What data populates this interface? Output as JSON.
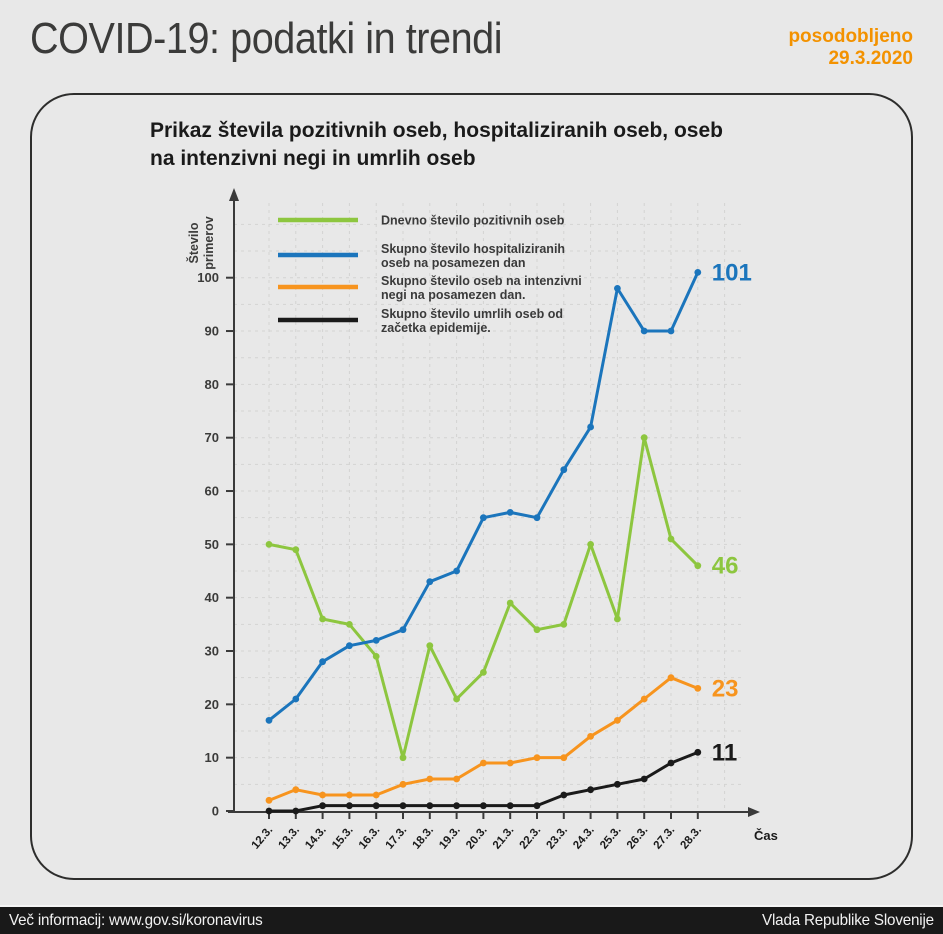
{
  "header": {
    "title": "COVID-19: podatki in trendi",
    "updated_label": "posodobljeno",
    "updated_date": "29.3.2020",
    "accent_color": "#f39200",
    "title_color": "#3b3b3a"
  },
  "card": {
    "title": "Prikaz števila pozitivnih oseb, hospitaliziranih oseb, oseb na intenzivni negi in umrlih oseb",
    "title_lines": [
      "Prikaz števila pozitivnih oseb, hospitaliziranih oseb, oseb",
      "na intenzivni negi in umrlih oseb"
    ]
  },
  "chart_data": {
    "type": "line",
    "title": "Prikaz števila pozitivnih oseb, hospitaliziranih oseb, oseb na intenzivni negi in umrlih oseb",
    "xlabel": "Čas",
    "ylabel": "Število primerov",
    "ylabel_lines": [
      "Število",
      "primerov"
    ],
    "x": [
      "12.3.",
      "13.3.",
      "14.3.",
      "15.3.",
      "16.3.",
      "17.3.",
      "18.3.",
      "19.3.",
      "20.3.",
      "21.3.",
      "22.3.",
      "23.3.",
      "24.3.",
      "25.3.",
      "26.3.",
      "27.3.",
      "28.3."
    ],
    "yticks": [
      0,
      10,
      20,
      30,
      40,
      50,
      60,
      70,
      80,
      90,
      100
    ],
    "ylim": [
      0,
      115
    ],
    "grid": {
      "visible": true,
      "style": "dashed",
      "horizontal_step": 5,
      "vertical": "per-date",
      "color": "#d3d3d2"
    },
    "legend_position": "top-left-inside",
    "axis_color": "#3a3a3a",
    "series": [
      {
        "name": "Dnevno število pozitivnih oseb",
        "legend_lines": [
          "Dnevno število pozitivnih oseb"
        ],
        "color": "#8dc63f",
        "values": [
          50,
          49,
          36,
          35,
          29,
          10,
          31,
          21,
          26,
          39,
          34,
          35,
          50,
          36,
          70,
          51,
          46
        ],
        "end_label": "46"
      },
      {
        "name": "Skupno število hospitaliziranih oseb na posamezen dan",
        "legend_lines": [
          "Skupno število hospitaliziranih",
          "oseb na posamezen dan"
        ],
        "color": "#1b75bc",
        "values": [
          17,
          21,
          28,
          31,
          32,
          34,
          43,
          45,
          55,
          56,
          55,
          64,
          72,
          98,
          90,
          90,
          101
        ],
        "end_label": "101"
      },
      {
        "name": "Skupno število oseb na intenzivni negi na posamezen dan.",
        "legend_lines": [
          "Skupno število oseb na intenzivni",
          "negi na posamezen dan."
        ],
        "color": "#f7941e",
        "values": [
          2,
          4,
          3,
          3,
          3,
          5,
          6,
          6,
          9,
          9,
          10,
          10,
          14,
          17,
          21,
          25,
          23
        ],
        "end_label": "23"
      },
      {
        "name": "Skupno število umrlih oseb od začetka epidemije.",
        "legend_lines": [
          "Skupno število umrlih oseb od",
          "začetka epidemije."
        ],
        "color": "#1a1a1a",
        "values": [
          0,
          0,
          1,
          1,
          1,
          1,
          1,
          1,
          1,
          1,
          1,
          3,
          4,
          5,
          6,
          9,
          11
        ],
        "end_label": "11"
      }
    ]
  },
  "footer": {
    "left": "Več informacij: www.gov.si/koronavirus",
    "right": "Vlada Republike Slovenije"
  }
}
